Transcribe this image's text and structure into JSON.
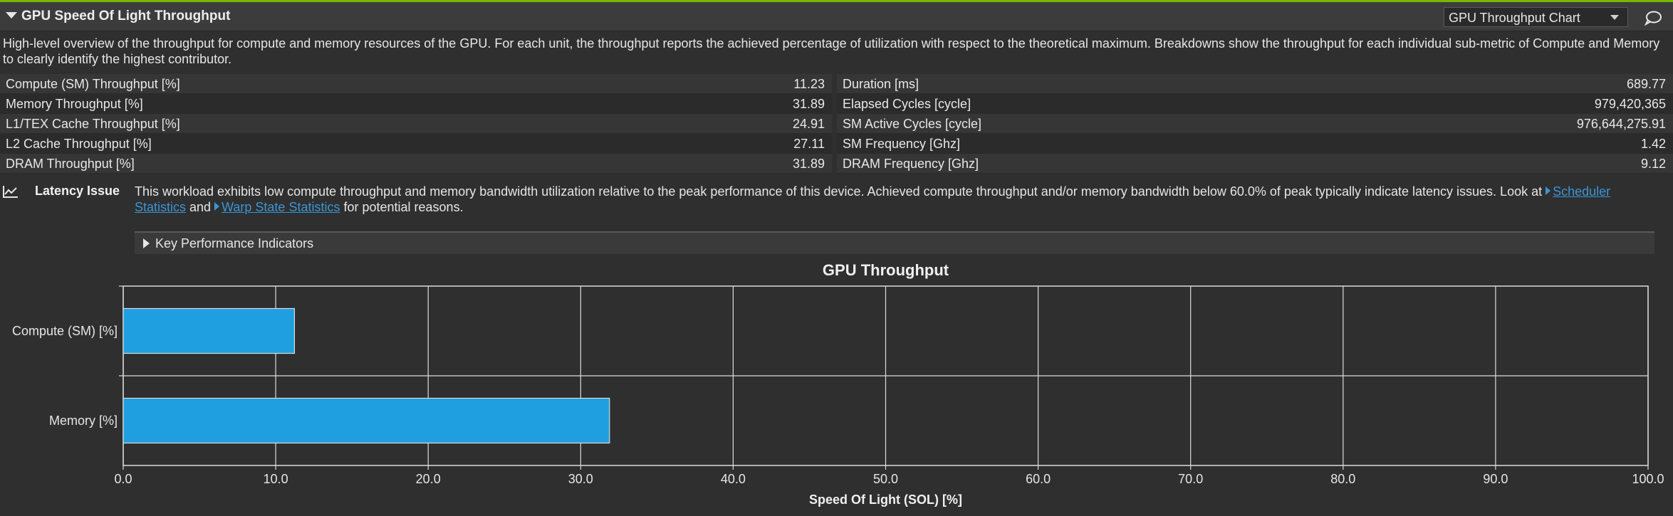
{
  "header": {
    "title": "GPU Speed Of Light Throughput",
    "chart_select": "GPU Throughput Chart"
  },
  "description": "High-level overview of the throughput for compute and memory resources of the GPU. For each unit, the throughput reports the achieved percentage of utilization with respect to the theoretical maximum. Breakdowns show the throughput for each individual sub-metric of Compute and Memory to clearly identify the highest contributor.",
  "metrics_left": [
    {
      "label": "Compute (SM) Throughput [%]",
      "value": "11.23"
    },
    {
      "label": "Memory Throughput [%]",
      "value": "31.89"
    },
    {
      "label": "L1/TEX Cache Throughput [%]",
      "value": "24.91"
    },
    {
      "label": "L2 Cache Throughput [%]",
      "value": "27.11"
    },
    {
      "label": "DRAM Throughput [%]",
      "value": "31.89"
    }
  ],
  "metrics_right": [
    {
      "label": "Duration [ms]",
      "value": "689.77"
    },
    {
      "label": "Elapsed Cycles [cycle]",
      "value": "979,420,365"
    },
    {
      "label": "SM Active Cycles [cycle]",
      "value": "976,644,275.91"
    },
    {
      "label": "SM Frequency [Ghz]",
      "value": "1.42"
    },
    {
      "label": "DRAM Frequency [Ghz]",
      "value": "9.12"
    }
  ],
  "issue": {
    "title": "Latency Issue",
    "text_before": "This workload exhibits low compute throughput and memory bandwidth utilization relative to the peak performance of this device. Achieved compute throughput and/or memory bandwidth below 60.0% of peak typically indicate latency issues. Look at ",
    "link1": "Scheduler Statistics",
    "text_mid": " and ",
    "link2": "Warp State Statistics",
    "text_after": " for potential reasons."
  },
  "kpi": {
    "label": "Key Performance Indicators"
  },
  "colors": {
    "accent": "#76b900",
    "bar": "#1f9fdf",
    "link": "#3a95d6"
  },
  "chart_data": {
    "type": "bar",
    "orientation": "horizontal",
    "title": "GPU Throughput",
    "xlabel": "Speed Of Light (SOL) [%]",
    "ylabel": "",
    "categories": [
      "Compute (SM) [%]",
      "Memory [%]"
    ],
    "values": [
      11.23,
      31.89
    ],
    "xlim": [
      0,
      100
    ],
    "xticks": [
      "0.0",
      "10.0",
      "20.0",
      "30.0",
      "40.0",
      "50.0",
      "60.0",
      "70.0",
      "80.0",
      "90.0",
      "100.0"
    ],
    "grid": true
  }
}
